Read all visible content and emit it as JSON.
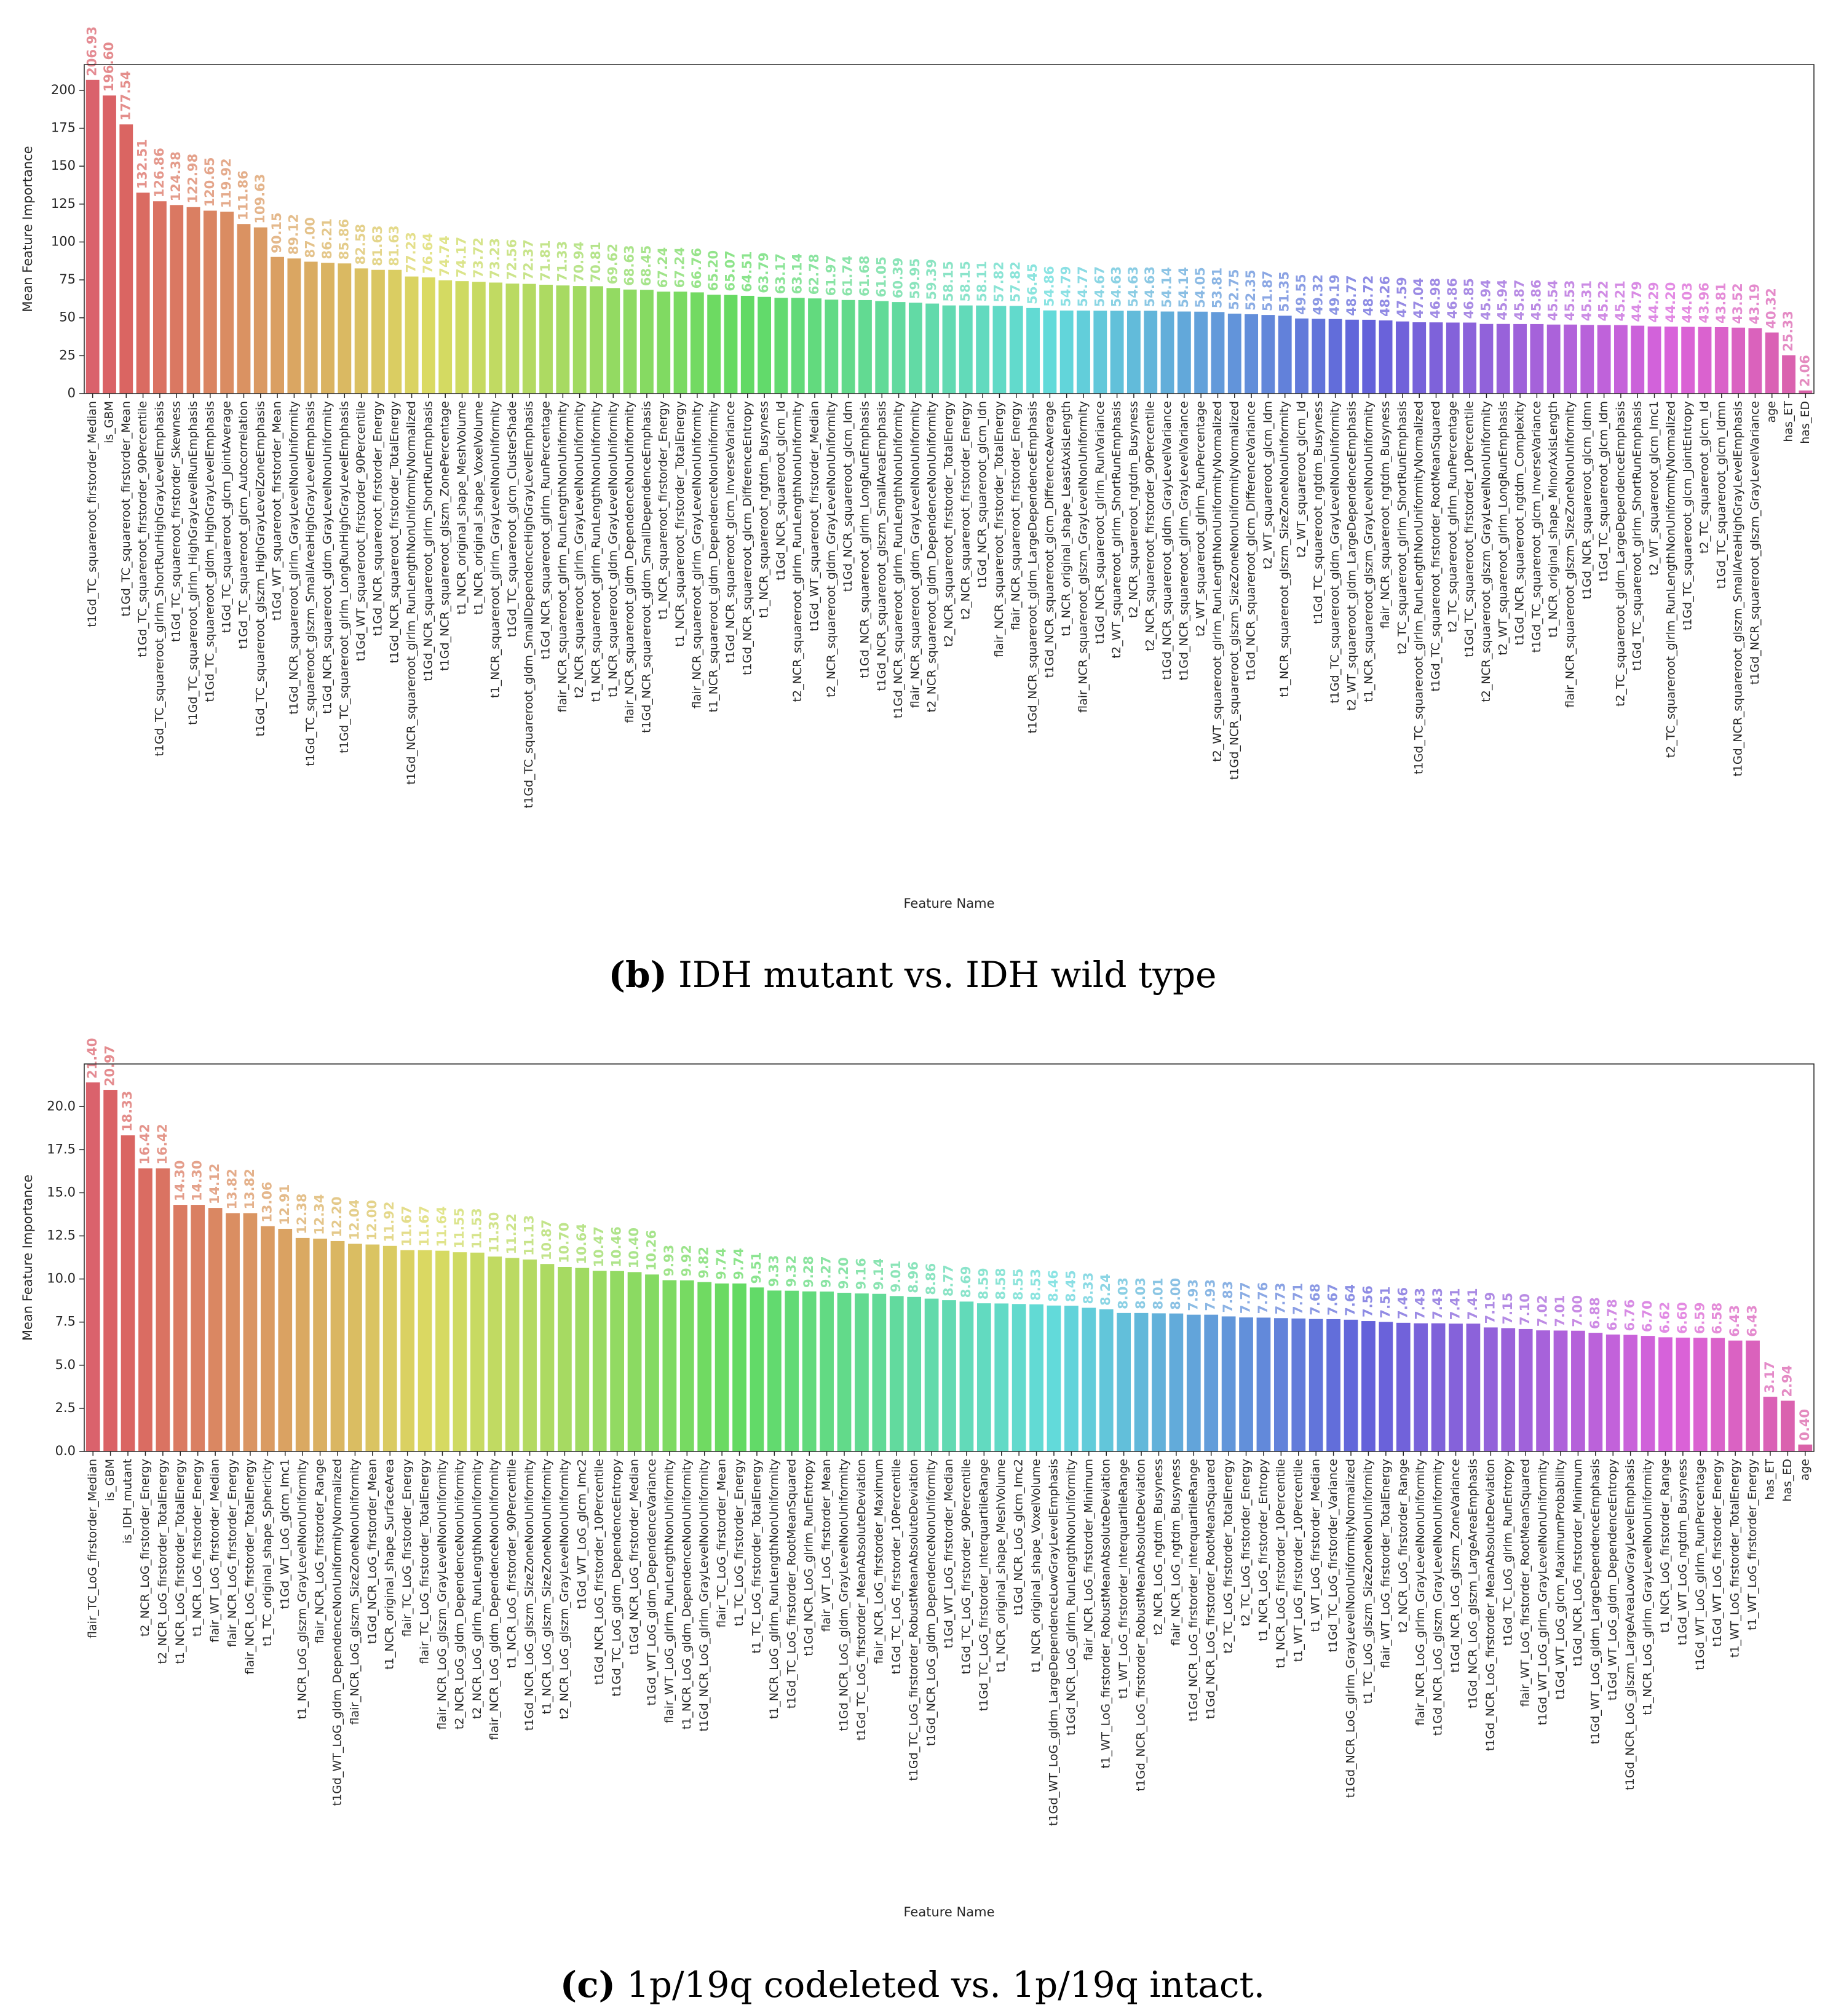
{
  "chart_data": [
    {
      "type": "bar",
      "palette": "husl",
      "caption_label": "(b)",
      "caption": "IDH mutant vs. IDH wild type",
      "xlabel": "Feature Name",
      "ylabel": "Mean Feature Importance",
      "ylim": [
        0,
        217
      ],
      "yticks": [
        0,
        25,
        50,
        75,
        100,
        125,
        150,
        175,
        200
      ],
      "categories": [
        "t1Gd_TC_squareroot_firstorder_Median",
        "is_GBM",
        "t1Gd_TC_squareroot_firstorder_Mean",
        "t1Gd_TC_squareroot_firstorder_90Percentile",
        "t1Gd_TC_squareroot_glrlm_ShortRunHighGrayLevelEmphasis",
        "t1Gd_TC_squareroot_firstorder_Skewness",
        "t1Gd_TC_squareroot_glrlm_HighGrayLevelRunEmphasis",
        "t1Gd_TC_squareroot_gldm_HighGrayLevelEmphasis",
        "t1Gd_TC_squareroot_glcm_JointAverage",
        "t1Gd_TC_squareroot_glcm_Autocorrelation",
        "t1Gd_TC_squareroot_glszm_HighGrayLevelZoneEmphasis",
        "t1Gd_WT_squareroot_firstorder_Mean",
        "t1Gd_NCR_squareroot_glrlm_GrayLevelNonUniformity",
        "t1Gd_TC_squareroot_glszm_SmallAreaHighGrayLevelEmphasis",
        "t1Gd_NCR_squareroot_gldm_GrayLevelNonUniformity",
        "t1Gd_TC_squareroot_glrlm_LongRunHighGrayLevelEmphasis",
        "t1Gd_WT_squareroot_firstorder_90Percentile",
        "t1Gd_NCR_squareroot_firstorder_Energy",
        "t1Gd_NCR_squareroot_firstorder_TotalEnergy",
        "t1Gd_NCR_squareroot_glrlm_RunLengthNonUniformityNormalized",
        "t1Gd_NCR_squareroot_glrlm_ShortRunEmphasis",
        "t1Gd_NCR_squareroot_glszm_ZonePercentage",
        "t1_NCR_original_shape_MeshVolume",
        "t1_NCR_original_shape_VoxelVolume",
        "t1_NCR_squareroot_glrlm_GrayLevelNonUniformity",
        "t1Gd_TC_squareroot_glcm_ClusterShade",
        "t1Gd_TC_squareroot_gldm_SmallDependenceHighGrayLevelEmphasis",
        "t1Gd_NCR_squareroot_glrlm_RunPercentage",
        "flair_NCR_squareroot_glrlm_RunLengthNonUniformity",
        "t2_NCR_squareroot_glrlm_GrayLevelNonUniformity",
        "t1_NCR_squareroot_glrlm_RunLengthNonUniformity",
        "t1_NCR_squareroot_gldm_GrayLevelNonUniformity",
        "flair_NCR_squareroot_gldm_DependenceNonUniformity",
        "t1Gd_NCR_squareroot_gldm_SmallDependenceEmphasis",
        "t1_NCR_squareroot_firstorder_Energy",
        "t1_NCR_squareroot_firstorder_TotalEnergy",
        "flair_NCR_squareroot_glrlm_GrayLevelNonUniformity",
        "t1_NCR_squareroot_gldm_DependenceNonUniformity",
        "t1Gd_NCR_squareroot_glcm_InverseVariance",
        "t1Gd_NCR_squareroot_glcm_DifferenceEntropy",
        "t1_NCR_squareroot_ngtdm_Busyness",
        "t1Gd_NCR_squareroot_glcm_Id",
        "t2_NCR_squareroot_glrlm_RunLengthNonUniformity",
        "t1Gd_WT_squareroot_firstorder_Median",
        "t2_NCR_squareroot_gldm_GrayLevelNonUniformity",
        "t1Gd_NCR_squareroot_glcm_Idm",
        "t1Gd_NCR_squareroot_glrlm_LongRunEmphasis",
        "t1Gd_NCR_squareroot_glszm_SmallAreaEmphasis",
        "t1Gd_NCR_squareroot_glrlm_RunLengthNonUniformity",
        "flair_NCR_squareroot_gldm_GrayLevelNonUniformity",
        "t2_NCR_squareroot_gldm_DependenceNonUniformity",
        "t2_NCR_squareroot_firstorder_TotalEnergy",
        "t2_NCR_squareroot_firstorder_Energy",
        "t1Gd_NCR_squareroot_glcm_Idn",
        "flair_NCR_squareroot_firstorder_TotalEnergy",
        "flair_NCR_squareroot_firstorder_Energy",
        "t1Gd_NCR_squareroot_gldm_LargeDependenceEmphasis",
        "t1Gd_NCR_squareroot_glcm_DifferenceAverage",
        "t1_NCR_original_shape_LeastAxisLength",
        "flair_NCR_squareroot_glszm_GrayLevelNonUniformity",
        "t1Gd_NCR_squareroot_glrlm_RunVariance",
        "t2_WT_squareroot_glrlm_ShortRunEmphasis",
        "t2_NCR_squareroot_ngtdm_Busyness",
        "t2_NCR_squareroot_firstorder_90Percentile",
        "t1Gd_NCR_squareroot_gldm_GrayLevelVariance",
        "t1Gd_NCR_squareroot_glrlm_GrayLevelVariance",
        "t2_WT_squareroot_glrlm_RunPercentage",
        "t2_WT_squareroot_glrlm_RunLengthNonUniformityNormalized",
        "t1Gd_NCR_squareroot_glszm_SizeZoneNonUniformityNormalized",
        "t1Gd_NCR_squareroot_glcm_DifferenceVariance",
        "t2_WT_squareroot_glcm_Idm",
        "t1_NCR_squareroot_glszm_SizeZoneNonUniformity",
        "t2_WT_squareroot_glcm_Id",
        "t1Gd_TC_squareroot_ngtdm_Busyness",
        "t1Gd_TC_squareroot_gldm_GrayLevelNonUniformity",
        "t2_WT_squareroot_gldm_LargeDependenceEmphasis",
        "t1_NCR_squareroot_glszm_GrayLevelNonUniformity",
        "flair_NCR_squareroot_ngtdm_Busyness",
        "t2_TC_squareroot_glrlm_ShortRunEmphasis",
        "t1Gd_TC_squareroot_glrlm_RunLengthNonUniformityNormalized",
        "t1Gd_TC_squareroot_firstorder_RootMeanSquared",
        "t2_TC_squareroot_glrlm_RunPercentage",
        "t1Gd_TC_squareroot_firstorder_10Percentile",
        "t2_NCR_squareroot_glszm_GrayLevelNonUniformity",
        "t2_WT_squareroot_glrlm_LongRunEmphasis",
        "t1Gd_NCR_squareroot_ngtdm_Complexity",
        "t1Gd_TC_squareroot_glcm_InverseVariance",
        "t1_NCR_original_shape_MinorAxisLength",
        "flair_NCR_squareroot_glszm_SizeZoneNonUniformity",
        "t1Gd_NCR_squareroot_glcm_Idmn",
        "t1Gd_TC_squareroot_glcm_Idm",
        "t2_TC_squareroot_gldm_LargeDependenceEmphasis",
        "t1Gd_TC_squareroot_glrlm_ShortRunEmphasis",
        "t2_WT_squareroot_glcm_Imc1",
        "t2_TC_squareroot_glrlm_RunLengthNonUniformityNormalized",
        "t1Gd_TC_squareroot_glcm_JointEntropy",
        "t2_TC_squareroot_glcm_Id",
        "t1Gd_TC_squareroot_glcm_Idmn",
        "t1Gd_NCR_squareroot_glszm_SmallAreaHighGrayLevelEmphasis",
        "t1Gd_NCR_squareroot_glszm_GrayLevelVariance",
        "age",
        "has_ET",
        "has_ED"
      ],
      "values": [
        206.93,
        196.6,
        177.54,
        132.51,
        126.86,
        124.38,
        122.98,
        120.65,
        119.92,
        111.86,
        109.63,
        90.15,
        89.12,
        87,
        86.21,
        85.86,
        82.58,
        81.63,
        81.63,
        77.23,
        76.64,
        74.74,
        74.17,
        73.72,
        73.23,
        72.56,
        72.37,
        71.81,
        71.33,
        70.94,
        70.81,
        69.62,
        68.63,
        68.45,
        67.24,
        67.24,
        66.76,
        65.2,
        65.07,
        64.51,
        63.79,
        63.17,
        63.14,
        62.78,
        61.97,
        61.74,
        61.68,
        61.05,
        60.39,
        59.95,
        59.39,
        58.15,
        58.15,
        58.11,
        57.82,
        57.82,
        56.45,
        54.86,
        54.79,
        54.77,
        54.67,
        54.63,
        54.63,
        54.63,
        54.14,
        54.14,
        54.05,
        53.81,
        52.75,
        52.35,
        51.87,
        51.35,
        49.55,
        49.32,
        49.19,
        48.77,
        48.72,
        48.26,
        47.59,
        47.04,
        46.98,
        46.86,
        46.85,
        45.94,
        45.94,
        45.87,
        45.86,
        45.54,
        45.53,
        45.31,
        45.22,
        45.21,
        44.79,
        44.29,
        44.2,
        44.03,
        43.96,
        43.81,
        43.52,
        43.19,
        40.32,
        25.33,
        2.06
      ],
      "value_labels": [
        "206.93",
        "196.60",
        "177.54",
        "132.51",
        "126.86",
        "124.38",
        "122.98",
        "120.65",
        "119.92",
        "111.86",
        "109.63",
        "90.15",
        "89.12",
        "87.00",
        "86.21",
        "85.86",
        "82.58",
        "81.63",
        "81.63",
        "77.23",
        "76.64",
        "74.74",
        "74.17",
        "73.72",
        "73.23",
        "72.56",
        "72.37",
        "71.81",
        "71.33",
        "70.94",
        "70.81",
        "69.62",
        "68.63",
        "68.45",
        "67.24",
        "67.24",
        "66.76",
        "65.20",
        "65.07",
        "64.51",
        "63.79",
        "63.17",
        "63.14",
        "62.78",
        "61.97",
        "61.74",
        "61.68",
        "61.05",
        "60.39",
        "59.95",
        "59.39",
        "58.15",
        "58.15",
        "58.11",
        "57.82",
        "57.82",
        "56.45",
        "54.86",
        "54.79",
        "54.77",
        "54.67",
        "54.63",
        "54.63",
        "54.63",
        "54.14",
        "54.14",
        "54.05",
        "53.81",
        "52.75",
        "52.35",
        "51.87",
        "51.35",
        "49.55",
        "49.32",
        "49.19",
        "48.77",
        "48.72",
        "48.26",
        "47.59",
        "47.04",
        "46.98",
        "46.86",
        "46.85",
        "45.94",
        "45.94",
        "45.87",
        "45.86",
        "45.54",
        "45.53",
        "45.31",
        "45.22",
        "45.21",
        "44.79",
        "44.29",
        "44.20",
        "44.03",
        "43.96",
        "43.81",
        "43.52",
        "43.19",
        "40.32",
        "25.33",
        "2.06"
      ]
    },
    {
      "type": "bar",
      "palette": "husl",
      "caption_label": "(c)",
      "caption": "1p/19q codeleted vs. 1p/19q intact.",
      "xlabel": "Feature Name",
      "ylabel": "Mean Feature Importance",
      "ylim": [
        0,
        22.47
      ],
      "yticks": [
        {
          "value": 0,
          "label": "0.0"
        },
        2.5,
        {
          "value": 5,
          "label": "5.0"
        },
        7.5,
        {
          "value": 10,
          "label": "10.0"
        },
        12.5,
        {
          "value": 15,
          "label": "15.0"
        },
        17.5,
        {
          "value": 20,
          "label": "20.0"
        }
      ],
      "categories": [
        "flair_TC_LoG_firstorder_Median",
        "is_GBM",
        "is_IDH_mutant",
        "t2_NCR_LoG_firstorder_Energy",
        "t2_NCR_LoG_firstorder_TotalEnergy",
        "t1_NCR_LoG_firstorder_TotalEnergy",
        "t1_NCR_LoG_firstorder_Energy",
        "flair_WT_LoG_firstorder_Median",
        "flair_NCR_LoG_firstorder_Energy",
        "flair_NCR_LoG_firstorder_TotalEnergy",
        "t1_TC_original_shape_Sphericity",
        "t1Gd_WT_LoG_glcm_Imc1",
        "t1_NCR_LoG_glszm_GrayLevelNonUniformity",
        "flair_NCR_LoG_firstorder_Range",
        "t1Gd_WT_LoG_gldm_DependenceNonUniformityNormalized",
        "flair_NCR_LoG_glszm_SizeZoneNonUniformity",
        "t1Gd_NCR_LoG_firstorder_Mean",
        "t1_NCR_original_shape_SurfaceArea",
        "flair_TC_LoG_firstorder_Energy",
        "flair_TC_LoG_firstorder_TotalEnergy",
        "flair_NCR_LoG_glszm_GrayLevelNonUniformity",
        "t2_NCR_LoG_gldm_DependenceNonUniformity",
        "t2_NCR_LoG_glrlm_RunLengthNonUniformity",
        "flair_NCR_LoG_gldm_DependenceNonUniformity",
        "t1_NCR_LoG_firstorder_90Percentile",
        "t1Gd_NCR_LoG_glszm_SizeZoneNonUniformity",
        "t1_NCR_LoG_glszm_SizeZoneNonUniformity",
        "t2_NCR_LoG_glszm_GrayLevelNonUniformity",
        "t1Gd_WT_LoG_glcm_Imc2",
        "t1Gd_NCR_LoG_firstorder_10Percentile",
        "t1Gd_TC_LoG_gldm_DependenceEntropy",
        "t1Gd_NCR_LoG_firstorder_Median",
        "t1Gd_WT_LoG_gldm_DependenceVariance",
        "flair_WT_LoG_glrlm_RunLengthNonUniformity",
        "t1_NCR_LoG_gldm_DependenceNonUniformity",
        "t1Gd_NCR_LoG_glrlm_GrayLevelNonUniformity",
        "flair_TC_LoG_firstorder_Mean",
        "t1_TC_LoG_firstorder_Energy",
        "t1_TC_LoG_firstorder_TotalEnergy",
        "t1_NCR_LoG_glrlm_RunLengthNonUniformity",
        "t1Gd_TC_LoG_firstorder_RootMeanSquared",
        "t1Gd_NCR_LoG_glrlm_RunEntropy",
        "flair_WT_LoG_firstorder_Mean",
        "t1Gd_NCR_LoG_gldm_GrayLevelNonUniformity",
        "t1Gd_TC_LoG_firstorder_MeanAbsoluteDeviation",
        "flair_NCR_LoG_firstorder_Maximum",
        "t1Gd_TC_LoG_firstorder_10Percentile",
        "t1Gd_TC_LoG_firstorder_RobustMeanAbsoluteDeviation",
        "t1Gd_NCR_LoG_gldm_DependenceNonUniformity",
        "t1Gd_WT_LoG_firstorder_Median",
        "t1Gd_TC_LoG_firstorder_90Percentile",
        "t1Gd_TC_LoG_firstorder_InterquartileRange",
        "t1_NCR_original_shape_MeshVolume",
        "t1Gd_NCR_LoG_glcm_Imc2",
        "t1_NCR_original_shape_VoxelVolume",
        "t1Gd_WT_LoG_gldm_LargeDependenceLowGrayLevelEmphasis",
        "t1Gd_NCR_LoG_glrlm_RunLengthNonUniformity",
        "flair_NCR_LoG_firstorder_Minimum",
        "t1_WT_LoG_firstorder_RobustMeanAbsoluteDeviation",
        "t1_WT_LoG_firstorder_InterquartileRange",
        "t1Gd_NCR_LoG_firstorder_RobustMeanAbsoluteDeviation",
        "t2_NCR_LoG_ngtdm_Busyness",
        "flair_NCR_LoG_ngtdm_Busyness",
        "t1Gd_NCR_LoG_firstorder_InterquartileRange",
        "t1Gd_NCR_LoG_firstorder_RootMeanSquared",
        "t2_TC_LoG_firstorder_TotalEnergy",
        "t2_TC_LoG_firstorder_Energy",
        "t1_NCR_LoG_firstorder_Entropy",
        "t1_NCR_LoG_firstorder_10Percentile",
        "t1_WT_LoG_firstorder_10Percentile",
        "t1_WT_LoG_firstorder_Median",
        "t1Gd_TC_LoG_firstorder_Variance",
        "t1Gd_NCR_LoG_glrlm_GrayLevelNonUniformityNormalized",
        "t1_TC_LoG_glszm_SizeZoneNonUniformity",
        "flair_WT_LoG_firstorder_TotalEnergy",
        "t2_NCR_LoG_firstorder_Range",
        "flair_NCR_LoG_glrlm_GrayLevelNonUniformity",
        "t1Gd_NCR_LoG_glszm_GrayLevelNonUniformity",
        "t1Gd_NCR_LoG_glszm_ZoneVariance",
        "t1Gd_NCR_LoG_glszm_LargeAreaEmphasis",
        "t1Gd_NCR_LoG_firstorder_MeanAbsoluteDeviation",
        "t1Gd_TC_LoG_glrlm_RunEntropy",
        "flair_WT_LoG_firstorder_RootMeanSquared",
        "t1Gd_WT_LoG_glrlm_GrayLevelNonUniformity",
        "t1Gd_WT_LoG_glcm_MaximumProbability",
        "t1Gd_NCR_LoG_firstorder_Minimum",
        "t1Gd_WT_LoG_gldm_LargeDependenceEmphasis",
        "t1Gd_WT_LoG_gldm_DependenceEntropy",
        "t1Gd_NCR_LoG_glszm_LargeAreaLowGrayLevelEmphasis",
        "t1_NCR_LoG_glrlm_GrayLevelNonUniformity",
        "t1_NCR_LoG_firstorder_Range",
        "t1Gd_WT_LoG_ngtdm_Busyness",
        "t1Gd_WT_LoG_glrlm_RunPercentage",
        "t1Gd_WT_LoG_firstorder_Energy",
        "t1_WT_LoG_firstorder_TotalEnergy",
        "t1_WT_LoG_firstorder_Energy",
        "has_ET",
        "has_ED",
        "age"
      ],
      "values": [
        21.4,
        20.97,
        18.33,
        16.42,
        16.42,
        14.3,
        14.3,
        14.12,
        13.82,
        13.82,
        13.06,
        12.91,
        12.38,
        12.34,
        12.2,
        12.04,
        12,
        11.92,
        11.67,
        11.67,
        11.64,
        11.55,
        11.53,
        11.3,
        11.22,
        11.13,
        10.87,
        10.7,
        10.64,
        10.47,
        10.46,
        10.4,
        10.26,
        9.93,
        9.92,
        9.82,
        9.74,
        9.74,
        9.51,
        9.33,
        9.32,
        9.28,
        9.27,
        9.2,
        9.16,
        9.14,
        9.01,
        8.96,
        8.86,
        8.77,
        8.69,
        8.59,
        8.58,
        8.55,
        8.53,
        8.46,
        8.45,
        8.33,
        8.24,
        8.03,
        8.03,
        8.01,
        8,
        7.93,
        7.93,
        7.83,
        7.77,
        7.76,
        7.73,
        7.71,
        7.68,
        7.67,
        7.64,
        7.56,
        7.51,
        7.46,
        7.43,
        7.43,
        7.41,
        7.41,
        7.19,
        7.15,
        7.1,
        7.02,
        7.01,
        7,
        6.88,
        6.78,
        6.76,
        6.7,
        6.62,
        6.6,
        6.59,
        6.58,
        6.43,
        6.43,
        3.17,
        2.94,
        0.4
      ],
      "value_labels": [
        "21.40",
        "20.97",
        "18.33",
        "16.42",
        "16.42",
        "14.30",
        "14.30",
        "14.12",
        "13.82",
        "13.82",
        "13.06",
        "12.91",
        "12.38",
        "12.34",
        "12.20",
        "12.04",
        "12.00",
        "11.92",
        "11.67",
        "11.67",
        "11.64",
        "11.55",
        "11.53",
        "11.30",
        "11.22",
        "11.13",
        "10.87",
        "10.70",
        "10.64",
        "10.47",
        "10.46",
        "10.40",
        "10.26",
        "9.93",
        "9.92",
        "9.82",
        "9.74",
        "9.74",
        "9.51",
        "9.33",
        "9.32",
        "9.28",
        "9.27",
        "9.20",
        "9.16",
        "9.14",
        "9.01",
        "8.96",
        "8.86",
        "8.77",
        "8.69",
        "8.59",
        "8.58",
        "8.55",
        "8.53",
        "8.46",
        "8.45",
        "8.33",
        "8.24",
        "8.03",
        "8.03",
        "8.01",
        "8.00",
        "7.93",
        "7.93",
        "7.83",
        "7.77",
        "7.76",
        "7.73",
        "7.71",
        "7.68",
        "7.67",
        "7.64",
        "7.56",
        "7.51",
        "7.46",
        "7.43",
        "7.43",
        "7.41",
        "7.41",
        "7.19",
        "7.15",
        "7.10",
        "7.02",
        "7.01",
        "7.00",
        "6.88",
        "6.78",
        "6.76",
        "6.70",
        "6.62",
        "6.60",
        "6.59",
        "6.58",
        "6.43",
        "6.43",
        "3.17",
        "2.94",
        "0.40"
      ]
    }
  ]
}
